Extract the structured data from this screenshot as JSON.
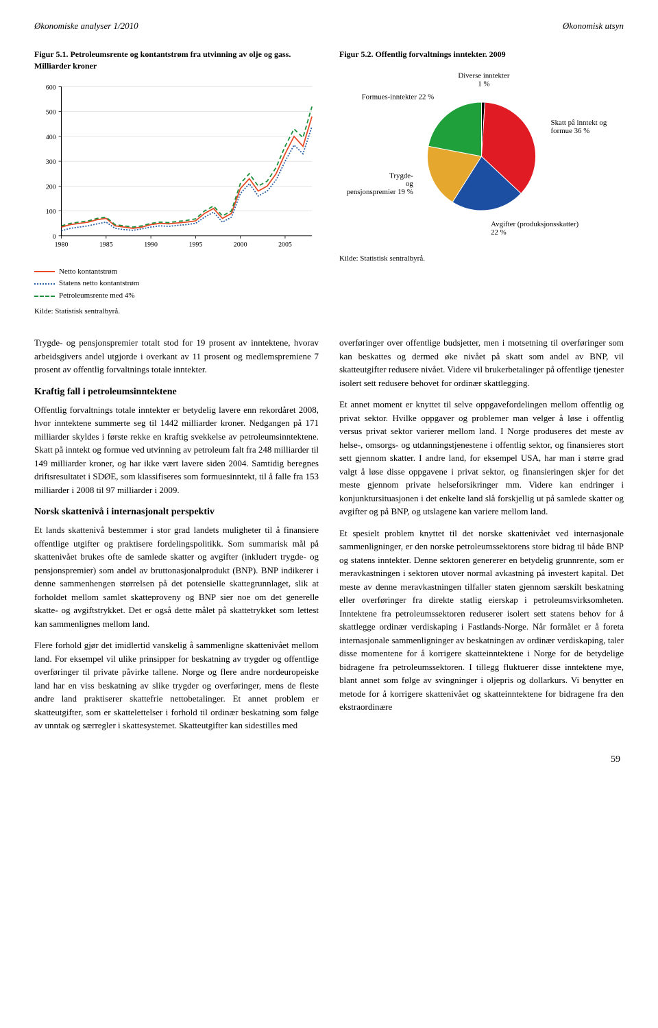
{
  "header": {
    "left": "Økonomiske analyser 1/2010",
    "right": "Økonomisk utsyn"
  },
  "figure1": {
    "caption": "Figur 5.1. Petroleumsrente og kontantstrøm fra utvinning av olje og gass. Milliarder kroner",
    "type": "line",
    "ylim": [
      0,
      600
    ],
    "ytick_step": 100,
    "xlim": [
      1980,
      2008
    ],
    "xticks": [
      1980,
      1985,
      1990,
      1995,
      2000,
      2005
    ],
    "background_color": "#ffffff",
    "grid_color": "#cccccc",
    "series": [
      {
        "name": "Netto kontantstrøm",
        "color": "#e84a27",
        "dash": "none",
        "values": [
          {
            "x": 1980,
            "y": 35
          },
          {
            "x": 1981,
            "y": 45
          },
          {
            "x": 1982,
            "y": 50
          },
          {
            "x": 1983,
            "y": 55
          },
          {
            "x": 1984,
            "y": 65
          },
          {
            "x": 1985,
            "y": 70
          },
          {
            "x": 1986,
            "y": 40
          },
          {
            "x": 1987,
            "y": 35
          },
          {
            "x": 1988,
            "y": 30
          },
          {
            "x": 1989,
            "y": 35
          },
          {
            "x": 1990,
            "y": 45
          },
          {
            "x": 1991,
            "y": 50
          },
          {
            "x": 1992,
            "y": 48
          },
          {
            "x": 1993,
            "y": 52
          },
          {
            "x": 1994,
            "y": 55
          },
          {
            "x": 1995,
            "y": 60
          },
          {
            "x": 1996,
            "y": 90
          },
          {
            "x": 1997,
            "y": 110
          },
          {
            "x": 1998,
            "y": 70
          },
          {
            "x": 1999,
            "y": 90
          },
          {
            "x": 2000,
            "y": 190
          },
          {
            "x": 2001,
            "y": 230
          },
          {
            "x": 2002,
            "y": 180
          },
          {
            "x": 2003,
            "y": 200
          },
          {
            "x": 2004,
            "y": 250
          },
          {
            "x": 2005,
            "y": 330
          },
          {
            "x": 2006,
            "y": 400
          },
          {
            "x": 2007,
            "y": 360
          },
          {
            "x": 2008,
            "y": 480
          }
        ]
      },
      {
        "name": "Statens netto kontantstrøm",
        "color": "#2b5fa4",
        "dash": "2,2",
        "values": [
          {
            "x": 1980,
            "y": 20
          },
          {
            "x": 1981,
            "y": 30
          },
          {
            "x": 1982,
            "y": 35
          },
          {
            "x": 1983,
            "y": 40
          },
          {
            "x": 1984,
            "y": 48
          },
          {
            "x": 1985,
            "y": 55
          },
          {
            "x": 1986,
            "y": 30
          },
          {
            "x": 1987,
            "y": 25
          },
          {
            "x": 1988,
            "y": 22
          },
          {
            "x": 1989,
            "y": 28
          },
          {
            "x": 1990,
            "y": 35
          },
          {
            "x": 1991,
            "y": 40
          },
          {
            "x": 1992,
            "y": 38
          },
          {
            "x": 1993,
            "y": 42
          },
          {
            "x": 1994,
            "y": 45
          },
          {
            "x": 1995,
            "y": 50
          },
          {
            "x": 1996,
            "y": 75
          },
          {
            "x": 1997,
            "y": 95
          },
          {
            "x": 1998,
            "y": 55
          },
          {
            "x": 1999,
            "y": 75
          },
          {
            "x": 2000,
            "y": 170
          },
          {
            "x": 2001,
            "y": 210
          },
          {
            "x": 2002,
            "y": 160
          },
          {
            "x": 2003,
            "y": 180
          },
          {
            "x": 2004,
            "y": 225
          },
          {
            "x": 2005,
            "y": 300
          },
          {
            "x": 2006,
            "y": 365
          },
          {
            "x": 2007,
            "y": 330
          },
          {
            "x": 2008,
            "y": 440
          }
        ]
      },
      {
        "name": "Petroleumsrente med 4%",
        "color": "#1a8f3a",
        "dash": "6,4",
        "values": [
          {
            "x": 1980,
            "y": 40
          },
          {
            "x": 1981,
            "y": 50
          },
          {
            "x": 1982,
            "y": 55
          },
          {
            "x": 1983,
            "y": 60
          },
          {
            "x": 1984,
            "y": 70
          },
          {
            "x": 1985,
            "y": 75
          },
          {
            "x": 1986,
            "y": 45
          },
          {
            "x": 1987,
            "y": 40
          },
          {
            "x": 1988,
            "y": 35
          },
          {
            "x": 1989,
            "y": 40
          },
          {
            "x": 1990,
            "y": 50
          },
          {
            "x": 1991,
            "y": 55
          },
          {
            "x": 1992,
            "y": 53
          },
          {
            "x": 1993,
            "y": 58
          },
          {
            "x": 1994,
            "y": 62
          },
          {
            "x": 1995,
            "y": 68
          },
          {
            "x": 1996,
            "y": 100
          },
          {
            "x": 1997,
            "y": 120
          },
          {
            "x": 1998,
            "y": 80
          },
          {
            "x": 1999,
            "y": 100
          },
          {
            "x": 2000,
            "y": 210
          },
          {
            "x": 2001,
            "y": 250
          },
          {
            "x": 2002,
            "y": 200
          },
          {
            "x": 2003,
            "y": 220
          },
          {
            "x": 2004,
            "y": 275
          },
          {
            "x": 2005,
            "y": 360
          },
          {
            "x": 2006,
            "y": 430
          },
          {
            "x": 2007,
            "y": 395
          },
          {
            "x": 2008,
            "y": 520
          }
        ]
      }
    ],
    "legend_labels": [
      "Netto kontantstrøm",
      "Statens netto kontantstrøm",
      "Petroleumsrente med 4%"
    ],
    "source": "Kilde: Statistisk sentralbyrå."
  },
  "figure2": {
    "caption": "Figur 5.2. Offentlig forvaltnings inntekter. 2009",
    "type": "pie",
    "slices": [
      {
        "label": "Diverse inntekter 1 %",
        "value": 1,
        "color": "#000000"
      },
      {
        "label": "Skatt på inntekt og formue 36 %",
        "value": 36,
        "color": "#e01b24"
      },
      {
        "label": "Avgifter (produksjonsskatter) 22 %",
        "value": 22,
        "color": "#1c4fa1"
      },
      {
        "label": "Trygde- og pensjonspremier 19 %",
        "value": 19,
        "color": "#e5a72d"
      },
      {
        "label": "Formues-inntekter 22 %",
        "value": 22,
        "color": "#1fa03a"
      }
    ],
    "source": "Kilde: Statistisk sentralbyrå."
  },
  "body": {
    "left": [
      {
        "type": "p",
        "text": "Trygde- og pensjonspremier totalt stod for 19 prosent av inntektene, hvorav arbeidsgivers andel utgjorde i overkant av 11 prosent og medlemspremiene 7 prosent av offentlig forvaltnings totale inntekter."
      },
      {
        "type": "h3",
        "text": "Kraftig fall i petroleumsinntektene"
      },
      {
        "type": "p",
        "text": "Offentlig forvaltnings totale inntekter er betydelig lavere enn rekordåret 2008, hvor inntektene summerte seg til 1442 milliarder kroner. Nedgangen på 171 milliarder skyldes i første rekke en kraftig svekkelse av petroleumsinntektene. Skatt på inntekt og formue ved utvinning av petroleum falt fra 248 milliarder til 149 milliarder kroner, og har ikke vært lavere siden 2004. Samtidig beregnes driftsresultatet i SDØE, som klassifiseres som formuesinntekt, til å falle fra 153 milliarder i 2008 til 97 milliarder i 2009."
      },
      {
        "type": "h3",
        "text": "Norsk skattenivå i internasjonalt perspektiv"
      },
      {
        "type": "p",
        "text": "Et lands skattenivå bestemmer i stor grad landets muligheter til å finansiere offentlige utgifter og praktisere fordelingspolitikk. Som summarisk mål på skattenivået brukes ofte de samlede skatter og avgifter (inkludert trygde- og pensjonspremier) som andel av bruttonasjonalprodukt (BNP). BNP indikerer i denne sammenhengen størrelsen på det potensielle skattegrunnlaget, slik at forholdet mellom samlet skatteproveny og BNP sier noe om det generelle skatte- og avgiftstrykket. Det er også dette målet på skattetrykket som lettest kan sammenlignes mellom land."
      },
      {
        "type": "p",
        "text": "Flere forhold gjør det imidlertid vanskelig å sammenligne skattenivået mellom land. For eksempel vil ulike prinsipper for beskatning av trygder og offentlige overføringer til private påvirke tallene. Norge og flere andre nordeuropeiske land har en viss beskatning av slike trygder og overføringer, mens de fleste andre land praktiserer skattefrie nettobetalinger. Et annet problem er skatteutgifter, som er skattelettelser i forhold til ordinær beskatning som følge av unntak og særregler i skattesystemet. Skatteutgifter kan sidestilles med"
      }
    ],
    "right": [
      {
        "type": "p",
        "text": "overføringer over offentlige budsjetter, men i motsetning til overføringer som kan beskattes og dermed øke nivået på skatt som andel av BNP, vil skatteutgifter redusere nivået. Videre vil brukerbetalinger på offentlige tjenester isolert sett redusere behovet for ordinær skattlegging."
      },
      {
        "type": "p",
        "text": "Et annet moment er knyttet til selve oppgavefordelingen mellom offentlig og privat sektor. Hvilke oppgaver og problemer man velger å løse i offentlig versus privat sektor varierer mellom land. I Norge produseres det meste av helse-, omsorgs- og utdanningstjenestene i offentlig sektor, og finansieres stort sett gjennom skatter. I andre land, for eksempel USA, har man i større grad valgt å løse disse oppgavene i privat sektor, og finansieringen skjer for det meste gjennom private helseforsikringer mm. Videre kan endringer i konjunktursituasjonen i det enkelte land slå forskjellig ut på samlede skatter og avgifter og på BNP, og utslagene kan variere mellom land."
      },
      {
        "type": "p",
        "text": "Et spesielt problem knyttet til det norske skattenivået ved internasjonale sammenligninger, er den norske petroleumssektorens store bidrag til både BNP og statens inntekter. Denne sektoren genererer en betydelig grunnrente, som er meravkastningen i sektoren utover normal avkastning på investert kapital. Det meste av denne meravkastningen tilfaller staten gjennom særskilt beskatning eller overføringer fra direkte statlig eierskap i petroleumsvirksomheten. Inntektene fra petroleumssektoren reduserer isolert sett statens behov for å skattlegge ordinær verdiskaping i Fastlands-Norge. Når formålet er å foreta internasjonale sammenligninger av beskatningen av ordinær verdiskaping, taler disse momentene for å korrigere skatteinntektene i Norge for de betydelige bidragene fra petroleumssektoren. I tillegg fluktuerer disse inntektene mye, blant annet som følge av svingninger i oljepris og dollarkurs. Vi benytter en metode for å korrigere skattenivået og skatteinntektene for bidragene fra den ekstraordinære"
      }
    ]
  },
  "page_number": "59"
}
